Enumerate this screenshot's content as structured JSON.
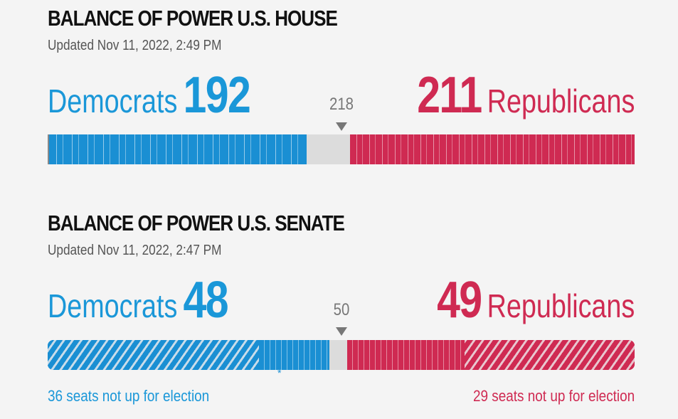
{
  "house": {
    "title": "BALANCE OF POWER U.S. HOUSE",
    "updated": "Updated Nov 11, 2022, 2:49 PM",
    "democrats": {
      "label": "Democrats",
      "count": "192",
      "seats": 192
    },
    "republicans": {
      "label": "Republicans",
      "count": "211",
      "seats": 211
    },
    "majority": {
      "label": "218",
      "value": 218
    },
    "total_seats": 435
  },
  "senate": {
    "title": "BALANCE OF POWER U.S. SENATE",
    "updated": "Updated Nov 11, 2022, 2:47 PM",
    "democrats": {
      "label": "Democrats",
      "count": "48",
      "seats": 48,
      "not_up": 36,
      "footnote": "36 seats not up for election"
    },
    "republicans": {
      "label": "Republicans",
      "count": "49",
      "seats": 49,
      "not_up": 29,
      "footnote": "29 seats not up for election"
    },
    "majority": {
      "label": "50",
      "value": 50
    },
    "asterisk": "*",
    "total_seats": 100
  },
  "colors": {
    "democrat": "#1a97d8",
    "republican": "#cf2a52",
    "undecided": "#dcdcdc",
    "pointer": "#777777"
  }
}
